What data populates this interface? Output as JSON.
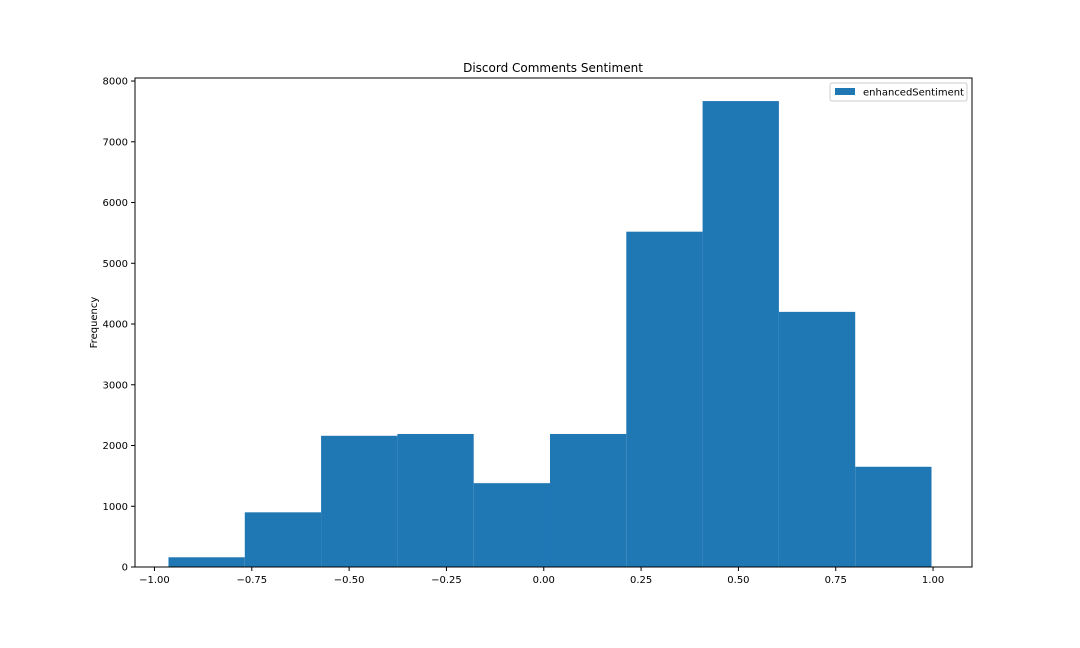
{
  "chart_data": {
    "type": "bar",
    "title": "Discord Comments Sentiment",
    "xlabel": "",
    "ylabel": "Frequency",
    "xlim": [
      -1.05,
      1.1
    ],
    "ylim": [
      0,
      8050
    ],
    "x_ticks": [
      -1.0,
      -0.75,
      -0.5,
      -0.25,
      0.0,
      0.25,
      0.5,
      0.75,
      1.0
    ],
    "x_tick_labels": [
      "−1.00",
      "−0.75",
      "−0.50",
      "−0.25",
      "0.00",
      "0.25",
      "0.50",
      "0.75",
      "1.00"
    ],
    "y_ticks": [
      0,
      1000,
      2000,
      3000,
      4000,
      5000,
      6000,
      7000,
      8000
    ],
    "y_tick_labels": [
      "0",
      "1000",
      "2000",
      "3000",
      "4000",
      "5000",
      "6000",
      "7000",
      "8000"
    ],
    "bin_edges": [
      -0.964,
      -0.768,
      -0.572,
      -0.376,
      -0.18,
      0.016,
      0.212,
      0.408,
      0.604,
      0.8,
      0.996
    ],
    "series": [
      {
        "name": "enhancedSentiment",
        "color": "#1f77b4",
        "values": [
          160,
          900,
          2160,
          2190,
          1380,
          2190,
          5520,
          7670,
          4200,
          1650
        ]
      }
    ],
    "legend": {
      "position": "top-right",
      "entries": [
        "enhancedSentiment"
      ]
    },
    "grid": false
  }
}
